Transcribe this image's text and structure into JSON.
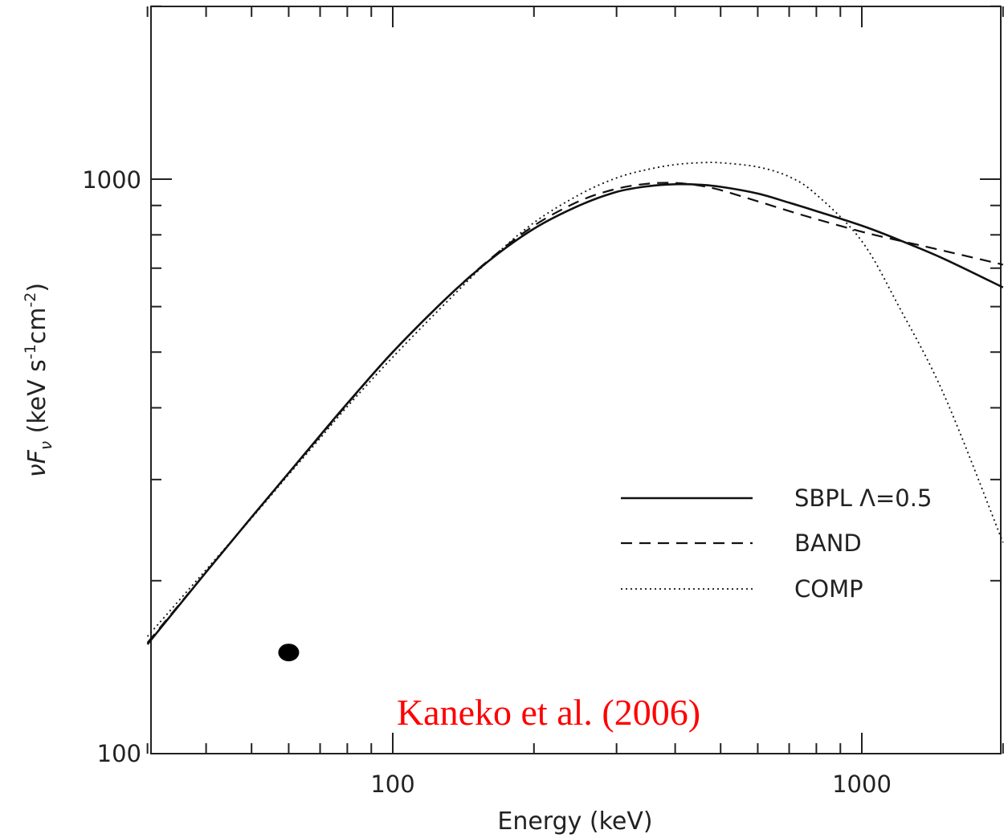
{
  "chart_data": {
    "type": "line",
    "xlabel": "Energy (keV)",
    "ylabel_main": "νF",
    "ylabel_sub": "ν",
    "ylabel_unit": "(keV s",
    "ylabel_unit_s_exp": "-1",
    "ylabel_unit_cm": "cm",
    "ylabel_unit_cm_exp": "-2",
    "ylabel_unit_close": ")",
    "x_scale": "log",
    "y_scale": "log",
    "xlim": [
      30,
      2000
    ],
    "ylim": [
      100,
      2000
    ],
    "x_tick_labels": [
      "100",
      "1000"
    ],
    "y_tick_labels": [
      "100",
      "1000"
    ],
    "grid": false,
    "legend_position": "lower-right",
    "series": [
      {
        "name": "SBPL Λ=0.5",
        "style": "solid",
        "x": [
          30,
          40,
          50,
          60,
          70,
          80,
          100,
          130,
          160,
          200,
          250,
          300,
          350,
          400,
          450,
          500,
          600,
          700,
          800,
          1000,
          1200,
          1500,
          2000
        ],
        "y": [
          155,
          207,
          258,
          308,
          358,
          407,
          500,
          620,
          720,
          820,
          900,
          950,
          972,
          980,
          978,
          970,
          944,
          910,
          880,
          830,
          784,
          726,
          648
        ]
      },
      {
        "name": "BAND",
        "style": "dashed",
        "x": [
          30,
          40,
          50,
          60,
          70,
          80,
          100,
          130,
          160,
          200,
          250,
          300,
          350,
          400,
          450,
          500,
          600,
          700,
          800,
          1000,
          1200,
          1500,
          2000
        ],
        "y": [
          156,
          207,
          258,
          308,
          357,
          406,
          500,
          620,
          722,
          830,
          916,
          962,
          982,
          985,
          975,
          957,
          915,
          880,
          852,
          810,
          782,
          750,
          710
        ]
      },
      {
        "name": "COMP",
        "style": "dotted",
        "x": [
          30,
          40,
          50,
          60,
          70,
          80,
          100,
          130,
          160,
          200,
          250,
          300,
          350,
          400,
          450,
          500,
          600,
          700,
          800,
          1000,
          1200,
          1500,
          2000
        ],
        "y": [
          160,
          209,
          257,
          306,
          354,
          402,
          490,
          610,
          720,
          840,
          940,
          1005,
          1040,
          1060,
          1068,
          1068,
          1050,
          1010,
          940,
          780,
          600,
          420,
          233
        ]
      }
    ],
    "marker": {
      "x": 60,
      "y": 150,
      "shape": "filled-circle",
      "color": "#000000"
    },
    "annotation": {
      "text": "Kaneko et al. (2006)",
      "color": "#ff0000"
    },
    "colors": {
      "axis": "#222222",
      "line": "#111111",
      "annotation": "#ff0000"
    }
  }
}
